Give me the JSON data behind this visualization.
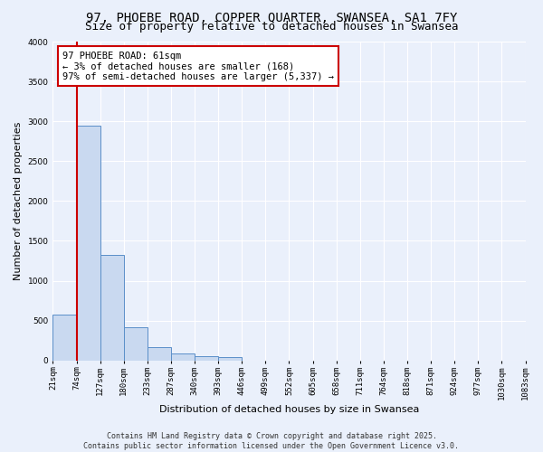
{
  "title": "97, PHOEBE ROAD, COPPER QUARTER, SWANSEA, SA1 7FY",
  "subtitle": "Size of property relative to detached houses in Swansea",
  "xlabel": "Distribution of detached houses by size in Swansea",
  "ylabel": "Number of detached properties",
  "bar_values": [
    580,
    2940,
    1320,
    420,
    170,
    85,
    55,
    40,
    0,
    0,
    0,
    0,
    0,
    0,
    0,
    0,
    0,
    0,
    0,
    0
  ],
  "bin_labels": [
    "21sqm",
    "74sqm",
    "127sqm",
    "180sqm",
    "233sqm",
    "287sqm",
    "340sqm",
    "393sqm",
    "446sqm",
    "499sqm",
    "552sqm",
    "605sqm",
    "658sqm",
    "711sqm",
    "764sqm",
    "818sqm",
    "871sqm",
    "924sqm",
    "977sqm",
    "1030sqm",
    "1083sqm"
  ],
  "bar_color": "#c9d9f0",
  "bar_edge_color": "#5b8fc9",
  "bg_color": "#eaf0fb",
  "grid_color": "#ffffff",
  "annotation_box_color": "#ffffff",
  "annotation_border_color": "#cc0000",
  "vline_color": "#cc0000",
  "vline_x": 0.5,
  "annotation_text_line1": "97 PHOEBE ROAD: 61sqm",
  "annotation_text_line2": "← 3% of detached houses are smaller (168)",
  "annotation_text_line3": "97% of semi-detached houses are larger (5,337) →",
  "footer_line1": "Contains HM Land Registry data © Crown copyright and database right 2025.",
  "footer_line2": "Contains public sector information licensed under the Open Government Licence v3.0.",
  "ylim": [
    0,
    4000
  ],
  "yticks": [
    0,
    500,
    1000,
    1500,
    2000,
    2500,
    3000,
    3500,
    4000
  ],
  "title_fontsize": 10,
  "subtitle_fontsize": 9,
  "axis_label_fontsize": 8,
  "tick_fontsize": 6.5,
  "annotation_fontsize": 7.5,
  "footer_fontsize": 6
}
